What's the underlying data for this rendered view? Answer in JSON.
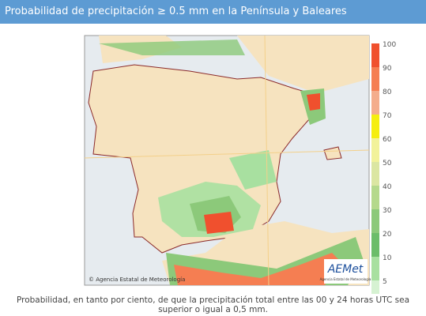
{
  "header": {
    "title": "Probabilidad de precipitación ≥ 0.5 mm en la Península y Baleares"
  },
  "legend": {
    "items": [
      {
        "label": 100,
        "color": "#f0502e"
      },
      {
        "label": 90,
        "color": "#f57e52"
      },
      {
        "label": 80,
        "color": "#f4ad8c"
      },
      {
        "label": 70,
        "color": "#f5ee10"
      },
      {
        "label": 60,
        "color": "#f2f29a"
      },
      {
        "label": 50,
        "color": "#dbe6a2"
      },
      {
        "label": 40,
        "color": "#b5d98c"
      },
      {
        "label": 30,
        "color": "#8cc97a"
      },
      {
        "label": 20,
        "color": "#6cbd6a"
      },
      {
        "label": 10,
        "color": "#a8e0a0"
      },
      {
        "label": 5,
        "color": "#d6f2d2"
      }
    ]
  },
  "map": {
    "attribution": "© Agencia Estatal de Meteorología",
    "logo": "AEMet",
    "logo_subtitle": "Agencia Estatal de Meteorología"
  },
  "caption": "Probabilidad, en tanto por ciento, de que la precipitación total entre las 00 y 24 horas UTC sea superior o igual a 0,5 mm."
}
